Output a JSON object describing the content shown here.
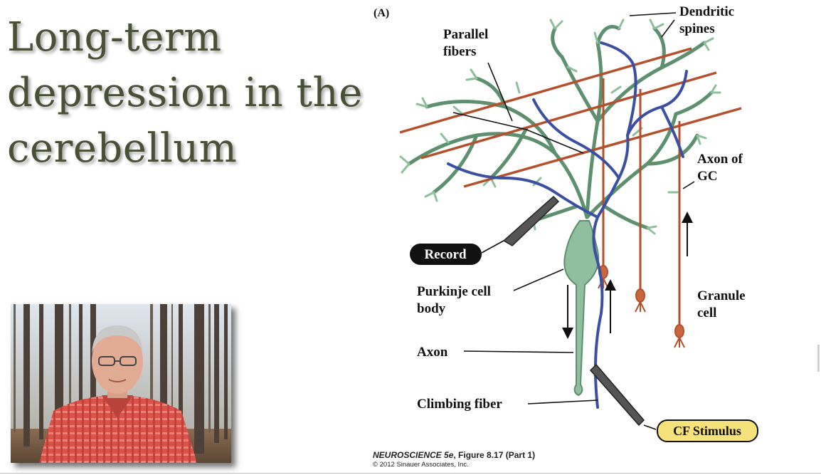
{
  "slide": {
    "title_lines": [
      "Long-term",
      "depression in the",
      "cerebellum"
    ]
  },
  "figure": {
    "panel": "(A)",
    "labels": {
      "dendritic_spines": [
        "Dendritic",
        "spines"
      ],
      "parallel_fibers": [
        "Parallel",
        "fibers"
      ],
      "axon_of_gc": [
        "Axon of",
        "GC"
      ],
      "record": "Record",
      "purkinje_cell_body": [
        "Purkinje cell",
        "body"
      ],
      "granule_cell": [
        "Granule",
        "cell"
      ],
      "axon": "Axon",
      "climbing_fiber": "Climbing fiber",
      "cf_stimulus": "CF Stimulus"
    },
    "colors": {
      "dendrite": "#8fbf9f",
      "dendrite_stroke": "#5e8f6e",
      "parallel_fiber": "#b5502e",
      "climbing_fiber": "#3c4fa0",
      "stimulus_badge": "#f6e27a"
    }
  },
  "credit": {
    "book": "NEUROSCIENCE 5e",
    "figure": ", Figure 8.17 (Part 1)",
    "copyright": "© 2012 Sinauer Associates, Inc."
  }
}
